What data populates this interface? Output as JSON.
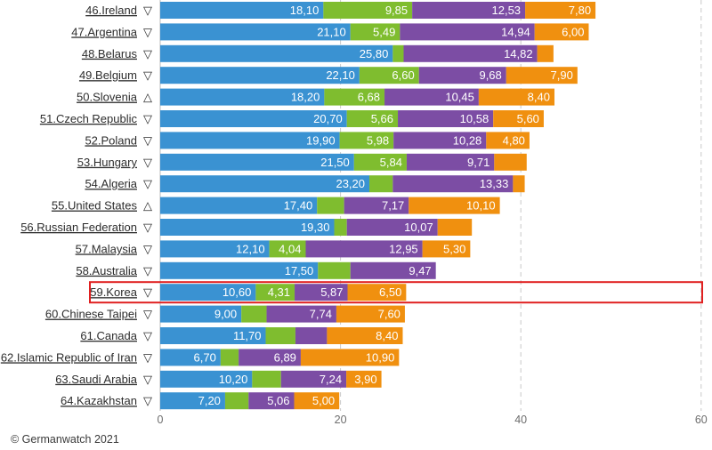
{
  "chart_data": {
    "type": "bar",
    "orientation": "horizontal",
    "stacked": true,
    "title": "",
    "xlabel": "",
    "ylabel": "",
    "xlim": [
      0,
      60
    ],
    "xticks": [
      0,
      20,
      40,
      60
    ],
    "grid": true,
    "highlight": "59.Korea",
    "categories": [
      "46.Ireland",
      "47.Argentina",
      "48.Belarus",
      "49.Belgium",
      "50.Slovenia",
      "51.Czech Republic",
      "52.Poland",
      "53.Hungary",
      "54.Algeria",
      "55.United States",
      "56.Russian Federation",
      "57.Malaysia",
      "58.Australia",
      "59.Korea",
      "60.Chinese Taipei",
      "61.Canada",
      "62.Islamic Republic of Iran",
      "63.Saudi Arabia",
      "64.Kazakhstan"
    ],
    "trend_icons": [
      "▽",
      "▽",
      "▽",
      "▽",
      "△",
      "▽",
      "▽",
      "▽",
      "▽",
      "△",
      "▽",
      "▽",
      "▽",
      "▽",
      "▽",
      "▽",
      "▽",
      "▽",
      "▽"
    ],
    "series": [
      {
        "name": "blue",
        "color": "#3a92d2",
        "values": [
          18.1,
          21.1,
          25.8,
          22.1,
          18.2,
          20.7,
          19.9,
          21.5,
          23.2,
          17.4,
          19.3,
          12.1,
          17.5,
          10.6,
          9.0,
          11.7,
          6.7,
          10.2,
          7.2
        ]
      },
      {
        "name": "green",
        "color": "#7fbd2f",
        "values": [
          9.85,
          5.49,
          1.2,
          6.6,
          6.68,
          5.66,
          5.98,
          5.84,
          2.6,
          3.0,
          1.4,
          4.04,
          3.6,
          4.31,
          2.8,
          3.3,
          2.0,
          3.2,
          2.6
        ]
      },
      {
        "name": "purple",
        "color": "#7c4da4",
        "values": [
          12.53,
          14.94,
          14.82,
          9.68,
          10.45,
          10.58,
          10.28,
          9.71,
          13.33,
          7.17,
          10.07,
          12.95,
          9.47,
          5.87,
          7.74,
          3.5,
          6.89,
          7.24,
          5.06
        ]
      },
      {
        "name": "orange",
        "color": "#f0900f",
        "values": [
          7.8,
          6.0,
          1.8,
          7.9,
          8.4,
          5.6,
          4.8,
          3.6,
          1.3,
          10.1,
          3.8,
          5.3,
          null,
          6.5,
          7.6,
          8.4,
          10.9,
          3.9,
          5.0
        ]
      }
    ],
    "value_labels": [
      [
        "18,10",
        "9,85",
        "12,53",
        "7,80"
      ],
      [
        "21,10",
        "5,49",
        "14,94",
        "6,00"
      ],
      [
        "25,80",
        "",
        "14,82",
        ""
      ],
      [
        "22,10",
        "6,60",
        "9,68",
        "7,90"
      ],
      [
        "18,20",
        "6,68",
        "10,45",
        "8,40"
      ],
      [
        "20,70",
        "5,66",
        "10,58",
        "5,60"
      ],
      [
        "19,90",
        "5,98",
        "10,28",
        "4,80"
      ],
      [
        "21,50",
        "5,84",
        "9,71",
        ""
      ],
      [
        "23,20",
        "",
        "13,33",
        ""
      ],
      [
        "17,40",
        "",
        "7,17",
        "10,10"
      ],
      [
        "19,30",
        "",
        "10,07",
        ""
      ],
      [
        "12,10",
        "4,04",
        "12,95",
        "5,30"
      ],
      [
        "17,50",
        "",
        "9,47",
        ""
      ],
      [
        "10,60",
        "4,31",
        "5,87",
        "6,50"
      ],
      [
        "9,00",
        "",
        "7,74",
        "7,60"
      ],
      [
        "11,70",
        "",
        "",
        "8,40"
      ],
      [
        "6,70",
        "",
        "6,89",
        "10,90"
      ],
      [
        "10,20",
        "",
        "7,24",
        "3,90"
      ],
      [
        "7,20",
        "",
        "5,06",
        "5,00"
      ]
    ]
  },
  "footer": {
    "credit": "© Germanwatch 2021"
  }
}
